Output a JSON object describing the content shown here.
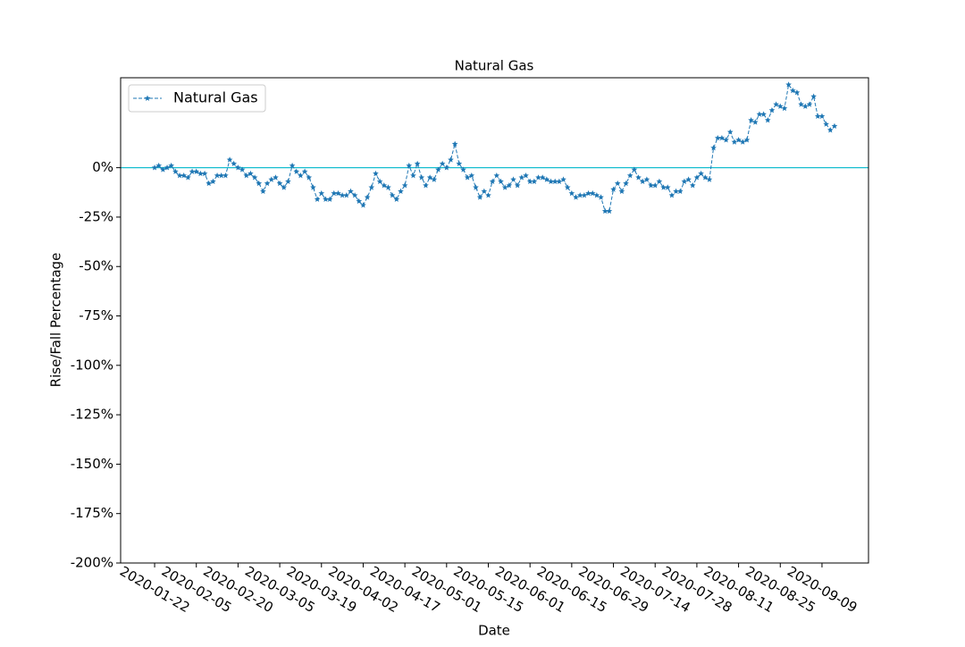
{
  "chart_data": {
    "type": "line",
    "title": "Natural Gas",
    "x_label": "Date",
    "y_label": "Rise/Fall Percentage",
    "categories": [
      "2020-01-22",
      null,
      null,
      null,
      null,
      null,
      null,
      null,
      null,
      null,
      "2020-02-05",
      null,
      null,
      null,
      null,
      null,
      null,
      null,
      null,
      null,
      "2020-02-20",
      null,
      null,
      null,
      null,
      null,
      null,
      null,
      null,
      null,
      "2020-03-05",
      null,
      null,
      null,
      null,
      null,
      null,
      null,
      null,
      null,
      "2020-03-19",
      null,
      null,
      null,
      null,
      null,
      null,
      null,
      null,
      null,
      "2020-04-02",
      null,
      null,
      null,
      null,
      null,
      null,
      null,
      null,
      null,
      "2020-04-17",
      null,
      null,
      null,
      null,
      null,
      null,
      null,
      null,
      null,
      "2020-05-01",
      null,
      null,
      null,
      null,
      null,
      null,
      null,
      null,
      null,
      "2020-05-15",
      null,
      null,
      null,
      null,
      null,
      null,
      null,
      null,
      null,
      "2020-06-01",
      null,
      null,
      null,
      null,
      null,
      null,
      null,
      null,
      null,
      "2020-06-15",
      null,
      null,
      null,
      null,
      null,
      null,
      null,
      null,
      null,
      "2020-06-29",
      null,
      null,
      null,
      null,
      null,
      null,
      null,
      null,
      null,
      "2020-07-14",
      null,
      null,
      null,
      null,
      null,
      null,
      null,
      null,
      null,
      "2020-07-28",
      null,
      null,
      null,
      null,
      null,
      null,
      null,
      null,
      null,
      "2020-08-11",
      null,
      null,
      null,
      null,
      null,
      null,
      null,
      null,
      null,
      "2020-08-25",
      null,
      null,
      null,
      null,
      null,
      null,
      null,
      null,
      null,
      "2020-09-09",
      null,
      null,
      null
    ],
    "series": [
      {
        "name": "Natural Gas",
        "color": "#1f77b4",
        "values": [
          0,
          1,
          -1,
          0,
          1,
          -2,
          -4,
          -4,
          -5,
          -2,
          -2,
          -3,
          -3,
          -8,
          -7,
          -4,
          -4,
          -4,
          4,
          2,
          0,
          -1,
          -4,
          -3,
          -5,
          -8,
          -12,
          -8,
          -6,
          -5,
          -8,
          -10,
          -7,
          1,
          -2,
          -4,
          -2,
          -5,
          -10,
          -16,
          -13,
          -16,
          -16,
          -13,
          -13,
          -14,
          -14,
          -12,
          -14,
          -17,
          -19,
          -15,
          -10,
          -3,
          -7,
          -9,
          -10,
          -14,
          -16,
          -12,
          -9,
          1,
          -4,
          2,
          -5,
          -9,
          -5,
          -6,
          -1,
          2,
          0,
          4,
          12,
          2,
          -1,
          -5,
          -4,
          -10,
          -15,
          -12,
          -14,
          -7,
          -4,
          -7,
          -10,
          -9,
          -6,
          -9,
          -5,
          -4,
          -7,
          -7,
          -5,
          -5,
          -6,
          -7,
          -7,
          -7,
          -6,
          -10,
          -13,
          -15,
          -14,
          -14,
          -13,
          -13,
          -14,
          -15,
          -22,
          -22,
          -11,
          -8,
          -12,
          -8,
          -4,
          -1,
          -5,
          -7,
          -6,
          -9,
          -9,
          -7,
          -10,
          -10,
          -14,
          -12,
          -12,
          -7,
          -6,
          -9,
          -5,
          -3,
          -5,
          -6,
          10,
          15,
          15,
          14,
          18,
          13,
          14,
          13,
          14,
          24,
          23,
          27,
          27,
          24,
          29,
          32,
          31,
          30,
          42,
          39,
          38,
          32,
          31,
          32,
          36,
          26,
          26,
          22,
          19,
          21
        ]
      }
    ],
    "xlim": [
      -8.15,
      171.15
    ],
    "ylim": [
      -200,
      45.5
    ],
    "yticks": [
      {
        "value": -200,
        "label": "-200%"
      },
      {
        "value": -175,
        "label": "-175%"
      },
      {
        "value": -150,
        "label": "-150%"
      },
      {
        "value": -125,
        "label": "-125%"
      },
      {
        "value": -100,
        "label": "-100%"
      },
      {
        "value": -75,
        "label": "-75%"
      },
      {
        "value": -50,
        "label": "-50%"
      },
      {
        "value": -25,
        "label": "-25%"
      },
      {
        "value": 0,
        "label": "0%"
      }
    ],
    "reference_line": {
      "value": 0,
      "color": "#17becf"
    },
    "legend": "upper-left"
  }
}
